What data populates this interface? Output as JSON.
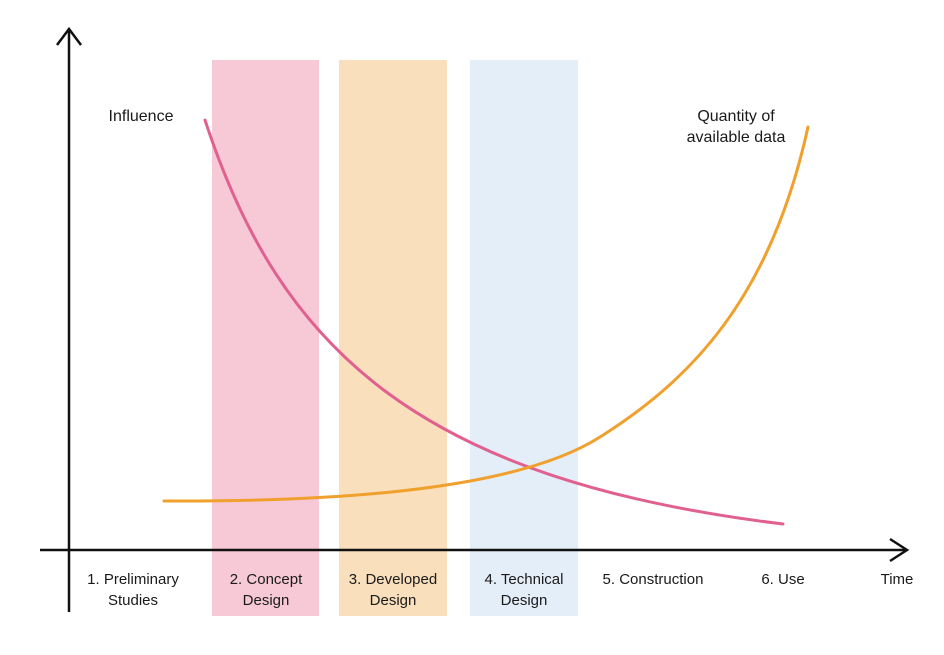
{
  "diagram": {
    "axis_x_label": "Time",
    "curves": [
      {
        "label": [
          "Influence"
        ],
        "color": "#e0608f"
      },
      {
        "label": [
          "Quantity of",
          "available data"
        ],
        "color": "#f0a02c"
      }
    ],
    "phases": [
      {
        "label": [
          "1. Preliminary",
          "Studies"
        ],
        "band_color": ""
      },
      {
        "label": [
          "2. Concept",
          "Design"
        ],
        "band_color": "#f7c9d6"
      },
      {
        "label": [
          "3. Developed",
          "Design"
        ],
        "band_color": "#f9dfbb"
      },
      {
        "label": [
          "4. Technical",
          "Design"
        ],
        "band_color": "#e3eef9"
      },
      {
        "label": [
          "5. Construction"
        ],
        "band_color": ""
      },
      {
        "label": [
          "6. Use"
        ],
        "band_color": ""
      }
    ]
  }
}
